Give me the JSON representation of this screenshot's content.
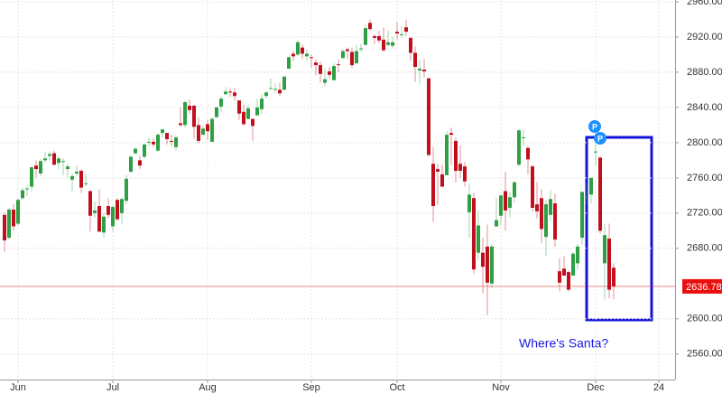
{
  "chart_data": {
    "type": "candlestick",
    "categories": [
      null,
      null,
      null,
      "Jun",
      null,
      null,
      null,
      null,
      null,
      null,
      null,
      null,
      null,
      null,
      null,
      null,
      null,
      null,
      null,
      null,
      null,
      null,
      null,
      null,
      "Jul",
      null,
      null,
      null,
      null,
      null,
      null,
      null,
      null,
      null,
      null,
      null,
      null,
      null,
      null,
      null,
      null,
      null,
      null,
      null,
      null,
      "Aug",
      null,
      null,
      null,
      null,
      null,
      null,
      null,
      null,
      null,
      null,
      null,
      null,
      null,
      null,
      null,
      null,
      null,
      null,
      null,
      null,
      null,
      null,
      "Sep",
      null,
      null,
      null,
      null,
      null,
      null,
      null,
      null,
      null,
      null,
      null,
      null,
      null,
      null,
      null,
      null,
      null,
      null,
      "Oct",
      null,
      null,
      null,
      null,
      null,
      null,
      null,
      null,
      null,
      null,
      null,
      null,
      null,
      null,
      null,
      null,
      null,
      null,
      null,
      null,
      null,
      null,
      "Nov",
      null,
      null,
      null,
      null,
      null,
      null,
      null,
      null,
      null,
      null,
      null,
      null,
      null,
      null,
      null,
      null,
      null,
      null,
      null,
      null,
      "Dec",
      null,
      null,
      null,
      null,
      null,
      null,
      null,
      null,
      null,
      null,
      null,
      null,
      null,
      "24",
      null,
      null
    ],
    "open": [
      2718,
      2692,
      2724,
      2708,
      2737,
      2747,
      2750,
      2774,
      2765,
      2780,
      2785,
      2788,
      2777,
      2778,
      2770,
      2758,
      2765,
      2768,
      2753,
      2745,
      2720,
      2728,
      2698,
      2728,
      2705,
      2735,
      2720,
      2734,
      2767,
      2788,
      2780,
      2784,
      2800,
      2801,
      2791,
      2811,
      2811,
      2802,
      2795,
      2822,
      2820,
      2842,
      2842,
      2820,
      2809,
      2821,
      2801,
      2829,
      2841,
      2855,
      2858,
      2857,
      2848,
      2835,
      2827,
      2827,
      2831,
      2838,
      2853,
      2861,
      2860,
      2860,
      2860,
      2884,
      2901,
      2900,
      2908,
      2898,
      2897,
      2891,
      2888,
      2868,
      2881,
      2871,
      2889,
      2896,
      2906,
      2903,
      2890,
      2906,
      2911,
      2936,
      2921,
      2921,
      2917,
      2911,
      2910,
      2926,
      2923,
      2931,
      2919,
      2902,
      2882,
      2883,
      2873,
      2776,
      2770,
      2764,
      2763,
      2811,
      2802,
      2776,
      2773,
      2721,
      2737,
      2675,
      2675,
      2682,
      2640,
      2705,
      2717,
      2745,
      2726,
      2738,
      2775,
      2806,
      2794,
      2773,
      2730,
      2737,
      2693,
      2718,
      2731,
      2654,
      2657,
      2653,
      2649,
      2663,
      2692,
      2737,
      2741,
      2790,
      2783,
      2663,
      2691,
      2658,
      null,
      null,
      null,
      null,
      null,
      null,
      null,
      null,
      null,
      null,
      null,
      null
    ],
    "high": [
      2721,
      2726,
      2730,
      2737,
      2749,
      2752,
      2773,
      2780,
      2781,
      2790,
      2790,
      2791,
      2785,
      2782,
      2776,
      2765,
      2774,
      2770,
      2764,
      2746,
      2733,
      2747,
      2720,
      2737,
      2729,
      2737,
      2738,
      2764,
      2786,
      2795,
      2785,
      2799,
      2806,
      2805,
      2811,
      2817,
      2811,
      2809,
      2808,
      2840,
      2848,
      2849,
      2843,
      2829,
      2819,
      2826,
      2829,
      2841,
      2853,
      2863,
      2862,
      2862,
      2848,
      2843,
      2843,
      2827,
      2850,
      2855,
      2859,
      2873,
      2867,
      2868,
      2876,
      2898,
      2904,
      2916,
      2912,
      2906,
      2900,
      2894,
      2892,
      2884,
      2886,
      2890,
      2894,
      2906,
      2908,
      2908,
      2911,
      2912,
      2934,
      2940,
      2923,
      2927,
      2931,
      2927,
      2920,
      2937,
      2932,
      2939,
      2920,
      2909,
      2894,
      2895,
      2874,
      2795,
      2776,
      2775,
      2813,
      2817,
      2806,
      2797,
      2778,
      2753,
      2743,
      2723,
      2692,
      2707,
      2685,
      2737,
      2741,
      2767,
      2744,
      2756,
      2816,
      2815,
      2796,
      2775,
      2755,
      2747,
      2735,
      2746,
      2742,
      2669,
      2671,
      2655,
      2676,
      2685,
      2745,
      2754,
      2760,
      2800,
      2785,
      2708,
      2708,
      2663,
      null,
      null,
      null,
      null,
      null,
      null,
      null,
      null,
      null,
      null,
      null,
      null
    ],
    "low": [
      2676,
      2690,
      2700,
      2706,
      2735,
      2739,
      2745,
      2760,
      2762,
      2777,
      2780,
      2774,
      2770,
      2763,
      2760,
      2745,
      2762,
      2743,
      2750,
      2699,
      2715,
      2698,
      2692,
      2714,
      2699,
      2711,
      2708,
      2730,
      2766,
      2786,
      2770,
      2782,
      2796,
      2795,
      2789,
      2806,
      2798,
      2796,
      2791,
      2818,
      2817,
      2833,
      2805,
      2799,
      2809,
      2803,
      2801,
      2828,
      2835,
      2855,
      2852,
      2848,
      2826,
      2819,
      2826,
      2802,
      2831,
      2833,
      2850,
      2861,
      2856,
      2853,
      2860,
      2884,
      2893,
      2898,
      2895,
      2893,
      2885,
      2876,
      2868,
      2864,
      2873,
      2871,
      2880,
      2896,
      2895,
      2885,
      2890,
      2903,
      2911,
      2927,
      2912,
      2913,
      2903,
      2909,
      2907,
      2917,
      2920,
      2921,
      2893,
      2869,
      2866,
      2874,
      2784,
      2710,
      2729,
      2750,
      2763,
      2775,
      2755,
      2760,
      2750,
      2692,
      2651,
      2667,
      2629,
      2604,
      2635,
      2704,
      2707,
      2700,
      2715,
      2732,
      2773,
      2796,
      2764,
      2722,
      2714,
      2686,
      2671,
      2711,
      2682,
      2631,
      2649,
      2631,
      2649,
      2656,
      2684,
      2730,
      2731,
      2774,
      2697,
      2622,
      2623,
      2622,
      null,
      null,
      null,
      null,
      null,
      null,
      null,
      null,
      null,
      null,
      null,
      null
    ],
    "close": [
      2689,
      2724,
      2705,
      2735,
      2746,
      2748,
      2772,
      2770,
      2779,
      2782,
      2787,
      2775,
      2782,
      2779,
      2773,
      2762,
      2767,
      2749,
      2754,
      2717,
      2723,
      2699,
      2716,
      2718,
      2727,
      2713,
      2736,
      2759,
      2784,
      2793,
      2774,
      2798,
      2801,
      2798,
      2809,
      2815,
      2804,
      2801,
      2806,
      2820,
      2846,
      2837,
      2818,
      2802,
      2816,
      2813,
      2827,
      2840,
      2850,
      2858,
      2857,
      2853,
      2833,
      2821,
      2839,
      2819,
      2840,
      2850,
      2857,
      2862,
      2861,
      2856,
      2875,
      2897,
      2898,
      2914,
      2901,
      2901,
      2896,
      2888,
      2878,
      2872,
      2877,
      2887,
      2888,
      2904,
      2904,
      2888,
      2904,
      2907,
      2930,
      2929,
      2919,
      2916,
      2905,
      2914,
      2914,
      2924,
      2923,
      2926,
      2902,
      2886,
      2884,
      2881,
      2786,
      2728,
      2767,
      2750,
      2809,
      2809,
      2768,
      2768,
      2756,
      2741,
      2656,
      2706,
      2659,
      2641,
      2682,
      2712,
      2740,
      2723,
      2738,
      2755,
      2814,
      2806,
      2781,
      2726,
      2722,
      2702,
      2730,
      2736,
      2690,
      2641,
      2649,
      2633,
      2674,
      2682,
      2744,
      2738,
      2760,
      2790,
      2700,
      2695,
      2633,
      2636.78,
      null,
      null,
      null,
      null,
      null,
      null,
      null,
      null,
      null,
      null,
      null,
      null
    ],
    "up_color": "#2ea043",
    "down_color": "#c0101e",
    "ylim": [
      2531,
      2962
    ],
    "yticks": [
      2560,
      2600,
      2680,
      2720,
      2760,
      2800,
      2840,
      2880,
      2920,
      2960
    ],
    "y_tick_format": "0.00",
    "grid": true,
    "last_price": 2636.78,
    "last_price_color": "#e8100f",
    "event_markers": [
      "P",
      "P"
    ],
    "annotation": "Where's Santa?",
    "annotation_color": "#1c1ce0"
  }
}
